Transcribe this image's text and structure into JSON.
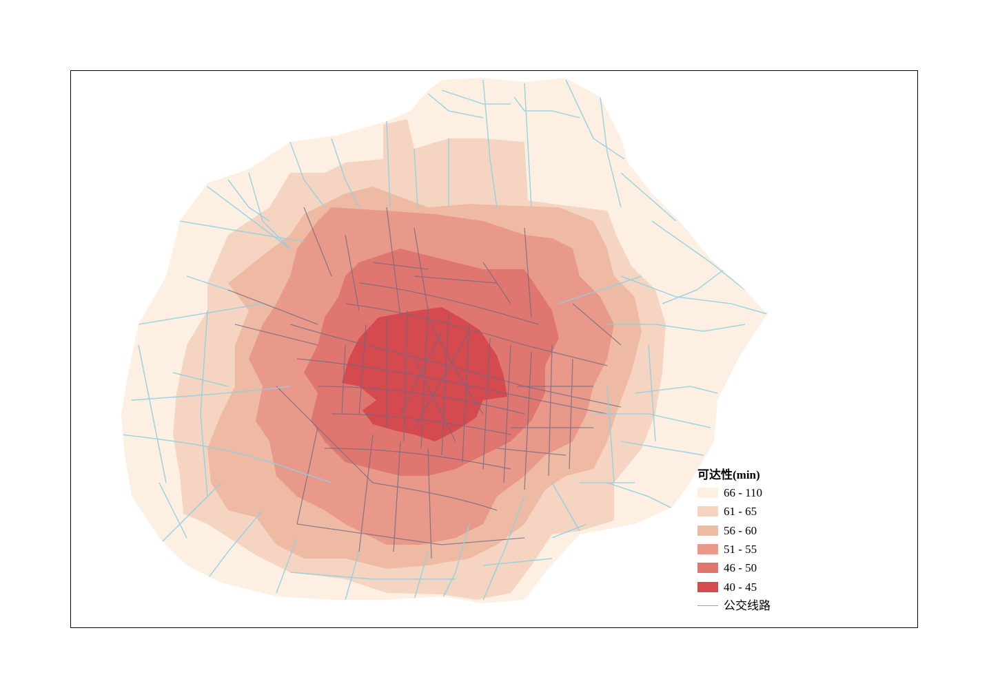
{
  "legend": {
    "title": "可达性(min)",
    "classes": [
      {
        "label": "66 - 110",
        "color": "#fdf0e3"
      },
      {
        "label": "61 - 65",
        "color": "#f5d5c1"
      },
      {
        "label": "56 - 60",
        "color": "#efbaa3"
      },
      {
        "label": "51 - 55",
        "color": "#e8998a"
      },
      {
        "label": "46 - 50",
        "color": "#df7770"
      },
      {
        "label": "40 - 45",
        "color": "#d44a4e"
      }
    ],
    "bus_line_label": "公交线路",
    "bus_line_color": "#8fd0e3",
    "street_color": "#6a6a85"
  }
}
